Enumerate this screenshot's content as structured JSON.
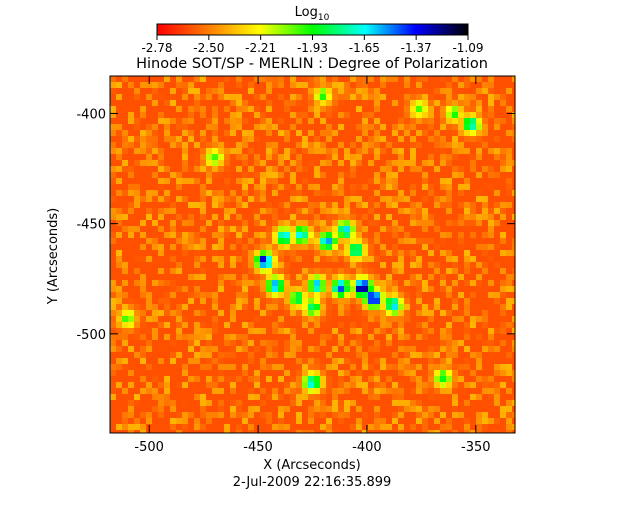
{
  "chart_data": {
    "type": "heatmap",
    "title": "Hinode SOT/SP - MERLIN : Degree of Polarization",
    "xlabel": "X (Arcseconds)",
    "ylabel": "Y (Arcseconds)",
    "timestamp": "2-Jul-2009 22:16:35.899",
    "xlim": [
      -518,
      -332
    ],
    "ylim": [
      -545,
      -383
    ],
    "x_ticks": [
      -500,
      -450,
      -400,
      -350
    ],
    "y_ticks": [
      -400,
      -450,
      -500
    ],
    "x_tick_labels": [
      "-500",
      "-450",
      "-400",
      "-350"
    ],
    "y_tick_labels": [
      "-400",
      "-450",
      "-500"
    ],
    "colorbar": {
      "label_base": "Log",
      "label_sub": "10",
      "range": [
        -2.78,
        -1.09
      ],
      "tick_labels": [
        "-2.78",
        "-2.50",
        "-2.21",
        "-1.93",
        "-1.65",
        "-1.37",
        "-1.09"
      ],
      "colors": [
        "#ff0000",
        "#ff8000",
        "#ffff00",
        "#00ff00",
        "#00ffff",
        "#0000ff",
        "#000000"
      ]
    },
    "background_level": -2.6,
    "features": [
      {
        "x": -447,
        "y": -467,
        "level": -1.3
      },
      {
        "x": -442,
        "y": -478,
        "level": -1.5
      },
      {
        "x": -438,
        "y": -456,
        "level": -1.6
      },
      {
        "x": -430,
        "y": -455,
        "level": -1.6
      },
      {
        "x": -418,
        "y": -458,
        "level": -1.5
      },
      {
        "x": -410,
        "y": -453,
        "level": -1.6
      },
      {
        "x": -405,
        "y": -462,
        "level": -1.7
      },
      {
        "x": -412,
        "y": -479,
        "level": -1.4
      },
      {
        "x": -402,
        "y": -479,
        "level": -1.1
      },
      {
        "x": -397,
        "y": -484,
        "level": -1.2
      },
      {
        "x": -388,
        "y": -487,
        "level": -1.6
      },
      {
        "x": -423,
        "y": -478,
        "level": -1.6
      },
      {
        "x": -432,
        "y": -484,
        "level": -1.8
      },
      {
        "x": -425,
        "y": -488,
        "level": -1.8
      },
      {
        "x": -425,
        "y": -522,
        "level": -1.6
      },
      {
        "x": -352,
        "y": -405,
        "level": -1.7
      },
      {
        "x": -365,
        "y": -520,
        "level": -1.9
      },
      {
        "x": -510,
        "y": -493,
        "level": -2.0
      },
      {
        "x": -470,
        "y": -420,
        "level": -2.0
      },
      {
        "x": -376,
        "y": -398,
        "level": -2.0
      },
      {
        "x": -420,
        "y": -392,
        "level": -2.0
      },
      {
        "x": -360,
        "y": -400,
        "level": -2.0
      }
    ]
  }
}
